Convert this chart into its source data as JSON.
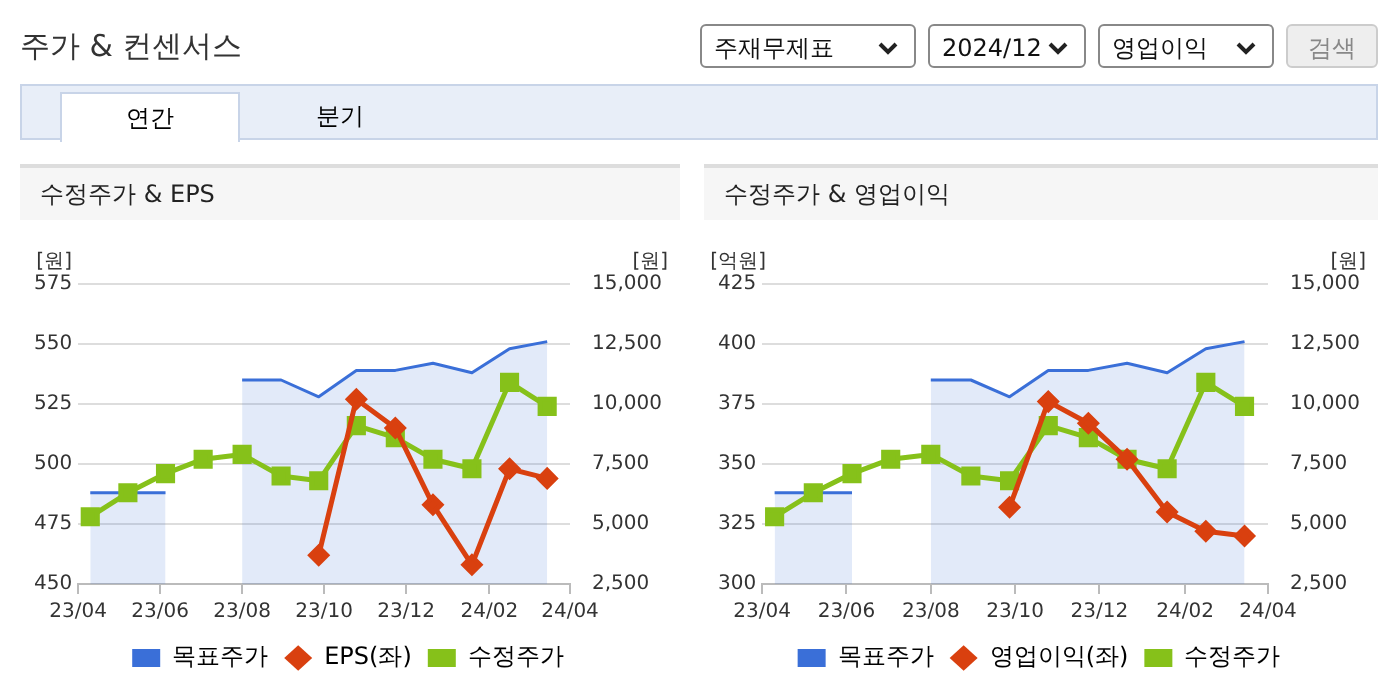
{
  "chart_data": [
    {
      "type": "other",
      "title": "주가 & 컨센서스",
      "annotations": [
        "주재무제표",
        "2024/12",
        "영업이익",
        "검색",
        "연간",
        "분기"
      ]
    },
    {
      "type": "line",
      "title": "수정주가 & EPS",
      "ylabel": "[원]",
      "y2label": "[원]",
      "x": [
        "2023-04-10",
        "2023-05-08",
        "2023-06-05",
        "2023-07-03",
        "2023-08-01",
        "2023-08-30",
        "2023-09-27",
        "2023-10-25",
        "2023-11-23",
        "2023-12-21",
        "2024-01-19",
        "2024-02-16",
        "2024-03-15"
      ],
      "xlim": [
        "2023-04-01",
        "2024-04-01"
      ],
      "xticks": [
        {
          "value": "2023-04-01",
          "label": "23/04"
        },
        {
          "value": "2023-06-01",
          "label": "23/06"
        },
        {
          "value": "2023-08-01",
          "label": "23/08"
        },
        {
          "value": "2023-10-01",
          "label": "23/10"
        },
        {
          "value": "2023-12-01",
          "label": "23/12"
        },
        {
          "value": "2024-02-01",
          "label": "24/02"
        },
        {
          "value": "2024-04-01",
          "label": "24/04"
        }
      ],
      "ylim": [
        450,
        575
      ],
      "yticks": [
        450,
        475,
        500,
        525,
        550,
        575
      ],
      "y2lim": [
        2500,
        15000
      ],
      "y2ticks": [
        {
          "value": 2500,
          "label": "2,500"
        },
        {
          "value": 5000,
          "label": "5,000"
        },
        {
          "value": 7500,
          "label": "7,500"
        },
        {
          "value": 10000,
          "label": "10,000"
        },
        {
          "value": 12500,
          "label": "12,500"
        },
        {
          "value": 15000,
          "label": "15,000"
        }
      ],
      "grid": "y",
      "legend": "bottom",
      "series": [
        {
          "name": "목표주가",
          "type": "area",
          "axis": "y2",
          "marker": "none",
          "color": "#3a6fd8",
          "values": [
            6300,
            6300,
            6300,
            null,
            11000,
            11000,
            10300,
            11400,
            11400,
            11700,
            11300,
            12300,
            12600
          ]
        },
        {
          "name": "EPS(좌)",
          "type": "line",
          "marker": "diamond",
          "color": "#d9400f",
          "values": [
            null,
            null,
            null,
            null,
            null,
            null,
            462,
            527,
            515,
            483,
            458,
            498,
            494
          ]
        },
        {
          "name": "수정주가",
          "type": "line",
          "axis": "y2",
          "marker": "square",
          "color": "#86c11a",
          "values": [
            5300,
            6300,
            7100,
            7700,
            7900,
            7000,
            6800,
            9100,
            8600,
            7700,
            7300,
            10900,
            9900
          ]
        }
      ]
    },
    {
      "type": "line",
      "title": "수정주가 & 영업이익",
      "ylabel": "[억원]",
      "y2label": "[원]",
      "x": [
        "2023-04-10",
        "2023-05-08",
        "2023-06-05",
        "2023-07-03",
        "2023-08-01",
        "2023-08-30",
        "2023-09-27",
        "2023-10-25",
        "2023-11-23",
        "2023-12-21",
        "2024-01-19",
        "2024-02-16",
        "2024-03-15"
      ],
      "xlim": [
        "2023-04-01",
        "2024-04-01"
      ],
      "xticks": [
        {
          "value": "2023-04-01",
          "label": "23/04"
        },
        {
          "value": "2023-06-01",
          "label": "23/06"
        },
        {
          "value": "2023-08-01",
          "label": "23/08"
        },
        {
          "value": "2023-10-01",
          "label": "23/10"
        },
        {
          "value": "2023-12-01",
          "label": "23/12"
        },
        {
          "value": "2024-02-01",
          "label": "24/02"
        },
        {
          "value": "2024-04-01",
          "label": "24/04"
        }
      ],
      "ylim": [
        300,
        425
      ],
      "yticks": [
        300,
        325,
        350,
        375,
        400,
        425
      ],
      "y2lim": [
        2500,
        15000
      ],
      "y2ticks": [
        {
          "value": 2500,
          "label": "2,500"
        },
        {
          "value": 5000,
          "label": "5,000"
        },
        {
          "value": 7500,
          "label": "7,500"
        },
        {
          "value": 10000,
          "label": "10,000"
        },
        {
          "value": 12500,
          "label": "12,500"
        },
        {
          "value": 15000,
          "label": "15,000"
        }
      ],
      "grid": "y",
      "legend": "bottom",
      "series": [
        {
          "name": "목표주가",
          "type": "area",
          "axis": "y2",
          "marker": "none",
          "color": "#3a6fd8",
          "values": [
            6300,
            6300,
            6300,
            null,
            11000,
            11000,
            10300,
            11400,
            11400,
            11700,
            11300,
            12300,
            12600
          ]
        },
        {
          "name": "영업이익(좌)",
          "type": "line",
          "marker": "diamond",
          "color": "#d9400f",
          "values": [
            null,
            null,
            null,
            null,
            null,
            null,
            332,
            376,
            367,
            352,
            330,
            322,
            320
          ]
        },
        {
          "name": "수정주가",
          "type": "line",
          "axis": "y2",
          "marker": "square",
          "color": "#86c11a",
          "values": [
            5300,
            6300,
            7100,
            7700,
            7900,
            7000,
            6800,
            9100,
            8600,
            7700,
            7300,
            10900,
            9900
          ]
        }
      ]
    }
  ]
}
